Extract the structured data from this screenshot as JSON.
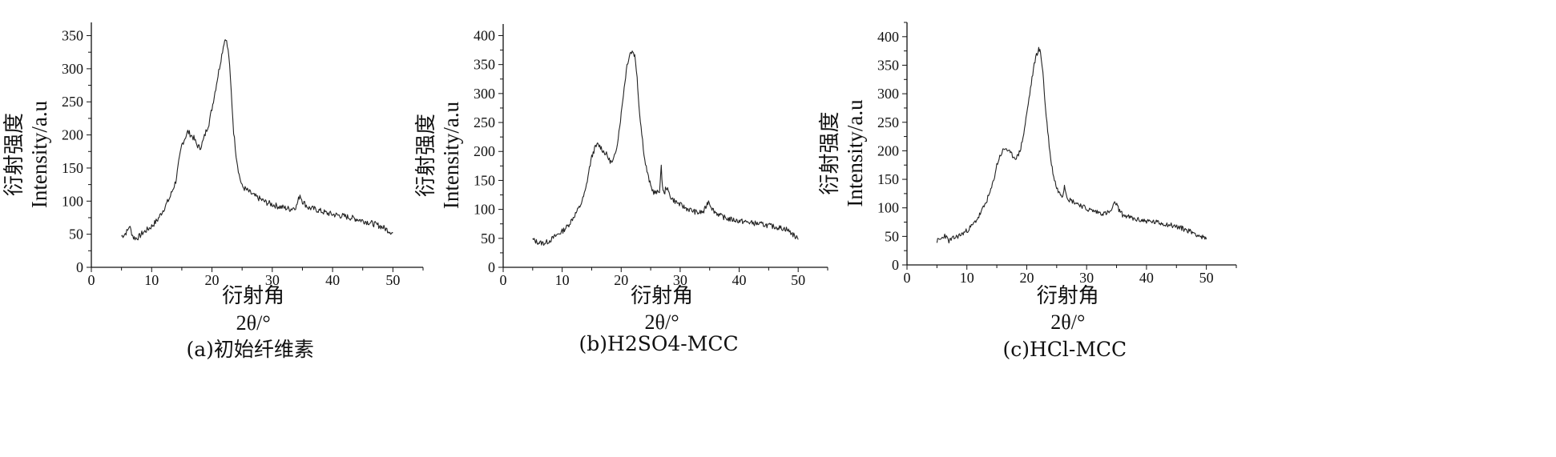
{
  "chart_data": [
    {
      "type": "line",
      "caption": "(a)初始纤维素",
      "ylabel_zh": "衍射强度",
      "ylabel_en": "Intensity/a.u",
      "xlabel_zh": "衍射角",
      "xlabel_en": "2θ/°",
      "xlim": [
        0,
        55
      ],
      "ylim": [
        0,
        370
      ],
      "xticks": [
        0,
        10,
        20,
        30,
        40,
        50
      ],
      "yticks": [
        0,
        50,
        100,
        150,
        200,
        250,
        300,
        350
      ],
      "grid": false,
      "series": [
        {
          "x": [
            5,
            5.5,
            6,
            6.3,
            6.7,
            7,
            7.5,
            8,
            8.5,
            9,
            10,
            11,
            12,
            13,
            14,
            14.5,
            15,
            15.5,
            16,
            16.5,
            17,
            17.5,
            18,
            18.5,
            19,
            19.5,
            20,
            20.5,
            21,
            21.5,
            22,
            22.3,
            22.8,
            23.2,
            23.6,
            24,
            24.5,
            25,
            26,
            27,
            28,
            29,
            30,
            31,
            32,
            33,
            34,
            34.6,
            35,
            35.5,
            36,
            37,
            38,
            39,
            40,
            42,
            44,
            46,
            48,
            49,
            50
          ],
          "y": [
            47,
            50,
            55,
            63,
            52,
            45,
            44,
            47,
            52,
            55,
            62,
            72,
            88,
            105,
            130,
            158,
            185,
            195,
            205,
            200,
            195,
            185,
            180,
            190,
            205,
            218,
            240,
            265,
            290,
            315,
            340,
            347,
            320,
            265,
            205,
            170,
            140,
            122,
            115,
            108,
            103,
            98,
            95,
            92,
            90,
            88,
            92,
            110,
            100,
            95,
            90,
            88,
            85,
            82,
            80,
            77,
            73,
            68,
            62,
            57,
            52
          ]
        }
      ]
    },
    {
      "type": "line",
      "caption": "(b)H2SO4-MCC",
      "ylabel_zh": "衍射强度",
      "ylabel_en": "Intensity/a.u",
      "xlabel_zh": "衍射角",
      "xlabel_en": "2θ/°",
      "xlim": [
        0,
        55
      ],
      "ylim": [
        0,
        420
      ],
      "xticks": [
        0,
        10,
        20,
        30,
        40,
        50
      ],
      "yticks": [
        0,
        50,
        100,
        150,
        200,
        250,
        300,
        350,
        400
      ],
      "grid": false,
      "series": [
        {
          "x": [
            5,
            5.5,
            6,
            6.5,
            7,
            7.5,
            8,
            9,
            10,
            11,
            12,
            13,
            13.5,
            14,
            14.5,
            15,
            15.5,
            16,
            16.5,
            17,
            17.5,
            18,
            18.5,
            19,
            19.5,
            20,
            20.5,
            21,
            21.5,
            22,
            22.3,
            22.7,
            23,
            23.5,
            24,
            24.5,
            25,
            25.5,
            26,
            26.5,
            26.8,
            27,
            27.3,
            27.6,
            28,
            28.5,
            29,
            30,
            31,
            32,
            33,
            34,
            34.8,
            35.5,
            36,
            37,
            38,
            40,
            42,
            44,
            46,
            48,
            49,
            50
          ],
          "y": [
            48,
            45,
            43,
            42,
            42,
            44,
            47,
            55,
            62,
            72,
            88,
            105,
            118,
            135,
            165,
            190,
            205,
            212,
            208,
            200,
            195,
            185,
            180,
            195,
            225,
            265,
            310,
            350,
            370,
            373,
            365,
            330,
            280,
            230,
            185,
            160,
            140,
            130,
            128,
            133,
            172,
            140,
            125,
            140,
            130,
            120,
            115,
            108,
            102,
            98,
            94,
            96,
            115,
            100,
            95,
            88,
            84,
            80,
            77,
            74,
            70,
            66,
            58,
            48
          ]
        }
      ]
    },
    {
      "type": "line",
      "caption": "(c)HCl-MCC",
      "ylabel_zh": "衍射强度",
      "ylabel_en": "Intensity/a.u",
      "xlabel_zh": "衍射角",
      "xlabel_en": "2θ/°",
      "xlim": [
        0,
        55
      ],
      "ylim": [
        0,
        425
      ],
      "xticks": [
        0,
        10,
        20,
        30,
        40,
        50
      ],
      "yticks": [
        0,
        50,
        100,
        150,
        200,
        250,
        300,
        350,
        400
      ],
      "grid": false,
      "series": [
        {
          "x": [
            5,
            5.5,
            6,
            6.3,
            6.7,
            7,
            7.5,
            8,
            9,
            10,
            11,
            12,
            13,
            14,
            14.5,
            15,
            15.5,
            16,
            16.5,
            17,
            17.5,
            18,
            18.5,
            19,
            19.5,
            20,
            20.5,
            21,
            21.5,
            22,
            22.3,
            22.7,
            23,
            23.5,
            24,
            24.5,
            25,
            25.5,
            26,
            26.3,
            26.6,
            27,
            28,
            29,
            30,
            31,
            32,
            33,
            34,
            34.8,
            35.5,
            36,
            37,
            38,
            40,
            42,
            44,
            46,
            48,
            49,
            50
          ],
          "y": [
            42,
            44,
            48,
            53,
            46,
            42,
            45,
            48,
            53,
            60,
            70,
            85,
            105,
            130,
            150,
            175,
            190,
            200,
            205,
            198,
            193,
            188,
            190,
            205,
            230,
            265,
            300,
            335,
            365,
            378,
            372,
            340,
            290,
            235,
            185,
            155,
            135,
            125,
            122,
            140,
            125,
            115,
            110,
            105,
            98,
            95,
            92,
            90,
            93,
            110,
            95,
            88,
            84,
            80,
            77,
            74,
            70,
            64,
            56,
            50,
            45
          ]
        }
      ]
    }
  ]
}
